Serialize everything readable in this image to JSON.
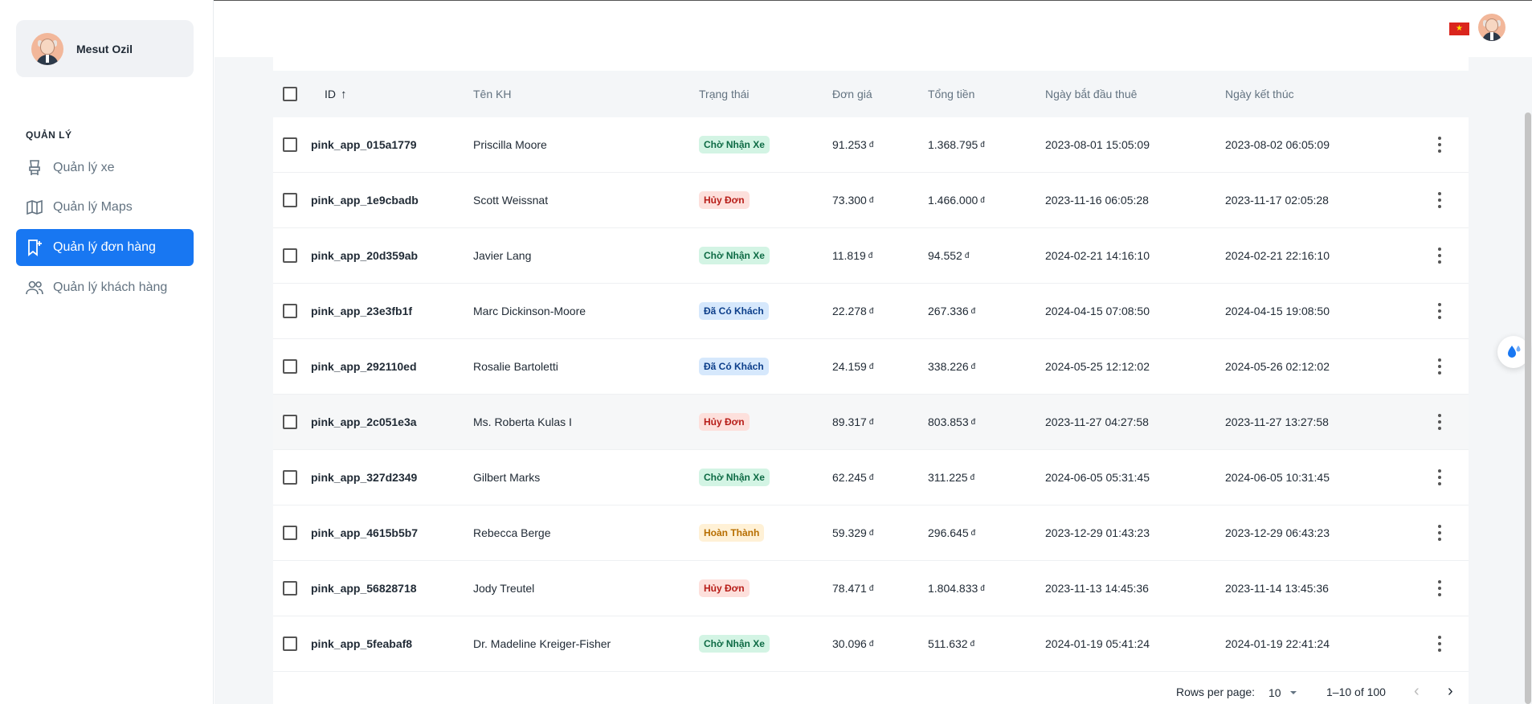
{
  "user": {
    "name": "Mesut Ozil"
  },
  "nav": {
    "section": "QUẢN LÝ",
    "items": [
      {
        "label": "Quản lý xe",
        "icon": "car-seat-icon"
      },
      {
        "label": "Quản lý Maps",
        "icon": "map-icon"
      },
      {
        "label": "Quản lý đơn hàng",
        "icon": "bookmark-plus-icon",
        "active": true
      },
      {
        "label": "Quản lý khách hàng",
        "icon": "users-icon"
      }
    ]
  },
  "header": {
    "flag": "vietnam-flag-icon",
    "flag_star": "★"
  },
  "table": {
    "columns": [
      "ID",
      "Tên KH",
      "Trạng thái",
      "Đơn giá",
      "Tổng tiền",
      "Ngày bắt đầu thuê",
      "Ngày kết thúc"
    ],
    "sort_icon": "↑",
    "currency": "đ",
    "rows": [
      {
        "id": "pink_app_015a1779",
        "name": "Priscilla Moore",
        "status": "Chờ Nhận Xe",
        "price": "91.253",
        "total": "1.368.795",
        "start": "2023-08-01 15:05:09",
        "end": "2023-08-02 06:05:09"
      },
      {
        "id": "pink_app_1e9cbadb",
        "name": "Scott Weissnat",
        "status": "Hủy Đơn",
        "price": "73.300",
        "total": "1.466.000",
        "start": "2023-11-16 06:05:28",
        "end": "2023-11-17 02:05:28"
      },
      {
        "id": "pink_app_20d359ab",
        "name": "Javier Lang",
        "status": "Chờ Nhận Xe",
        "price": "11.819",
        "total": "94.552",
        "start": "2024-02-21 14:16:10",
        "end": "2024-02-21 22:16:10"
      },
      {
        "id": "pink_app_23e3fb1f",
        "name": "Marc Dickinson-Moore",
        "status": "Đã Có Khách",
        "price": "22.278",
        "total": "267.336",
        "start": "2024-04-15 07:08:50",
        "end": "2024-04-15 19:08:50"
      },
      {
        "id": "pink_app_292110ed",
        "name": "Rosalie Bartoletti",
        "status": "Đã Có Khách",
        "price": "24.159",
        "total": "338.226",
        "start": "2024-05-25 12:12:02",
        "end": "2024-05-26 02:12:02"
      },
      {
        "id": "pink_app_2c051e3a",
        "name": "Ms. Roberta Kulas I",
        "status": "Hủy Đơn",
        "price": "89.317",
        "total": "803.853",
        "start": "2023-11-27 04:27:58",
        "end": "2023-11-27 13:27:58"
      },
      {
        "id": "pink_app_327d2349",
        "name": "Gilbert Marks",
        "status": "Chờ Nhận Xe",
        "price": "62.245",
        "total": "311.225",
        "start": "2024-06-05 05:31:45",
        "end": "2024-06-05 10:31:45"
      },
      {
        "id": "pink_app_4615b5b7",
        "name": "Rebecca Berge",
        "status": "Hoàn Thành",
        "price": "59.329",
        "total": "296.645",
        "start": "2023-12-29 01:43:23",
        "end": "2023-12-29 06:43:23"
      },
      {
        "id": "pink_app_56828718",
        "name": "Jody Treutel",
        "status": "Hủy Đơn",
        "price": "78.471",
        "total": "1.804.833",
        "start": "2023-11-13 14:45:36",
        "end": "2023-11-14 13:45:36"
      },
      {
        "id": "pink_app_5feabaf8",
        "name": "Dr. Madeline Kreiger-Fisher",
        "status": "Chờ Nhận Xe",
        "price": "30.096",
        "total": "511.632",
        "start": "2024-01-19 05:41:24",
        "end": "2024-01-19 22:41:24"
      }
    ],
    "status_colors": {
      "Chờ Nhận Xe": {
        "bg": "#d3f4e4",
        "fg": "#0e6b45"
      },
      "Hủy Đơn": {
        "bg": "#fde0dc",
        "fg": "#b71d18"
      },
      "Đã Có Khách": {
        "bg": "#d6e8fc",
        "fg": "#0c3e8a"
      },
      "Hoàn Thành": {
        "bg": "#fff1d6",
        "fg": "#b76e00"
      }
    }
  },
  "pagination": {
    "rows_per_page_label": "Rows per page:",
    "rows_per_page": "10",
    "range": "1–10 of 100",
    "prev_icon": "‹",
    "next_icon": "›"
  },
  "colors": {
    "accent": "#1877f2"
  }
}
